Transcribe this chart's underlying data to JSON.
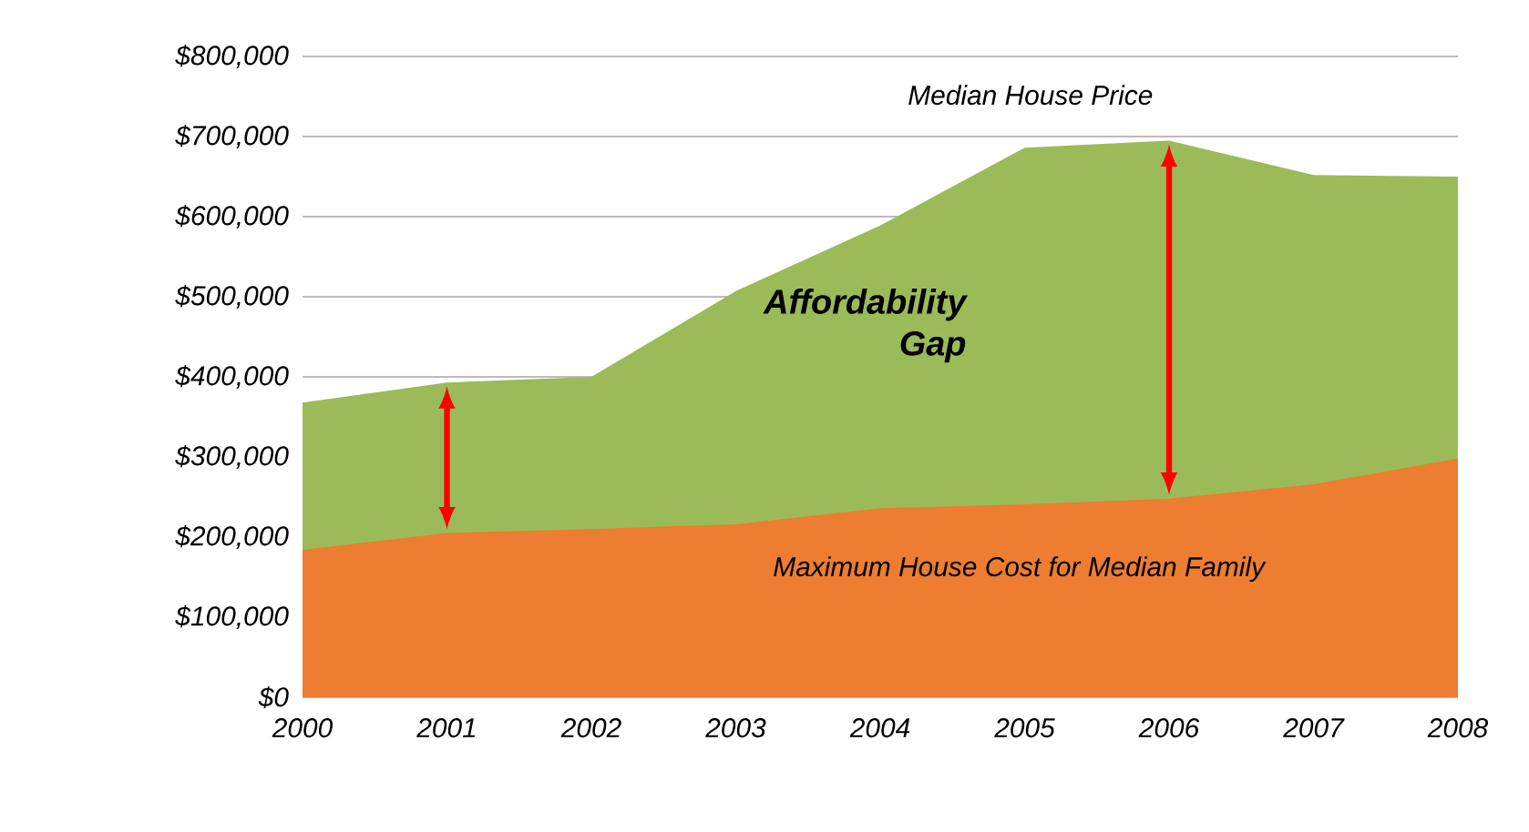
{
  "chart_data": {
    "type": "area",
    "x": [
      2000,
      2001,
      2002,
      2003,
      2004,
      2005,
      2006,
      2007,
      2008
    ],
    "series": [
      {
        "name": "Median House Price",
        "color": "#9bbb59",
        "values": [
          368000,
          393000,
          400000,
          507000,
          589000,
          686000,
          695000,
          652000,
          650000
        ]
      },
      {
        "name": "Maximum House Cost for Median Family",
        "color": "#ed7d31",
        "values": [
          184000,
          205000,
          210000,
          216000,
          236000,
          241000,
          248000,
          266000,
          298000
        ]
      }
    ],
    "xlim": [
      2000,
      2008
    ],
    "xticks": [
      2000,
      2001,
      2002,
      2003,
      2004,
      2005,
      2006,
      2007,
      2008
    ],
    "ylim": [
      0,
      800000
    ],
    "yticks": [
      {
        "value": 0,
        "label": "$0"
      },
      {
        "value": 100000,
        "label": "$100,000"
      },
      {
        "value": 200000,
        "label": "$200,000"
      },
      {
        "value": 300000,
        "label": "$300,000"
      },
      {
        "value": 400000,
        "label": "$400,000"
      },
      {
        "value": 500000,
        "label": "$500,000"
      },
      {
        "value": 600000,
        "label": "$600,000"
      },
      {
        "value": 700000,
        "label": "$700,000"
      },
      {
        "value": 800000,
        "label": "$800,000"
      }
    ],
    "grid": "y",
    "annotations": [
      "**Affordability Gap**"
    ]
  }
}
